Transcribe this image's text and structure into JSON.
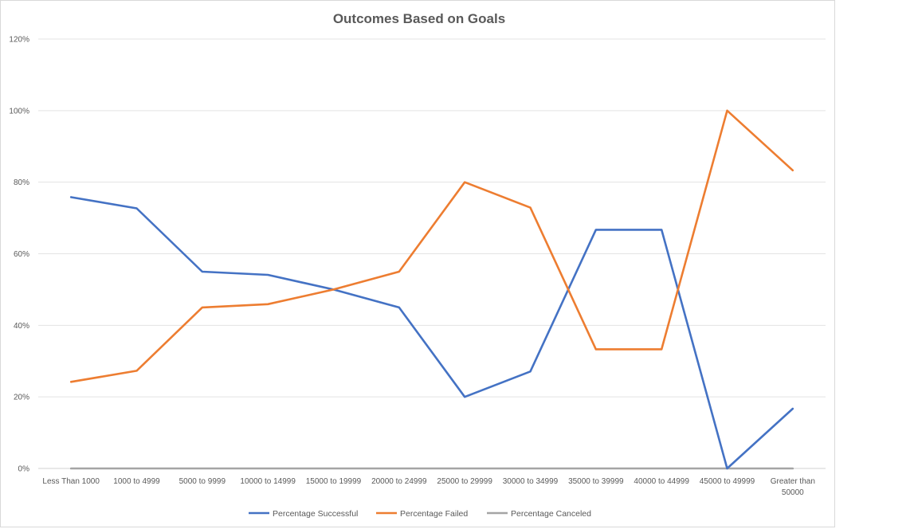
{
  "chart_data": {
    "type": "line",
    "title": "Outcomes Based on Goals",
    "xlabel": "",
    "ylabel": "",
    "categories": [
      "Less Than 1000",
      "1000 to 4999",
      "5000 to 9999",
      "10000 to 14999",
      "15000 to 19999",
      "20000 to 24999",
      "25000 to 29999",
      "30000 to 34999",
      "35000 to 39999",
      "40000 to 44999",
      "45000 to 49999",
      "Greater than 50000"
    ],
    "category_lines": [
      [
        "Less Than 1000"
      ],
      [
        "1000 to 4999"
      ],
      [
        "5000 to 9999"
      ],
      [
        "10000 to 14999"
      ],
      [
        "15000 to 19999"
      ],
      [
        "20000 to 24999"
      ],
      [
        "25000 to 29999"
      ],
      [
        "30000 to 34999"
      ],
      [
        "35000 to 39999"
      ],
      [
        "40000 to 44999"
      ],
      [
        "45000 to 49999"
      ],
      [
        "Greater than",
        "50000"
      ]
    ],
    "ylim": [
      0,
      120
    ],
    "y_ticks": [
      0,
      20,
      40,
      60,
      80,
      100,
      120
    ],
    "y_tick_labels": [
      "0%",
      "20%",
      "40%",
      "60%",
      "80%",
      "100%",
      "120%"
    ],
    "grid": true,
    "legend_position": "bottom",
    "series": [
      {
        "name": "Percentage Successful",
        "color": "#4472c4",
        "values": [
          75.8,
          72.7,
          55.0,
          54.1,
          50.0,
          45.0,
          20.0,
          27.1,
          66.7,
          66.7,
          0.0,
          16.7
        ]
      },
      {
        "name": "Percentage Failed",
        "color": "#ed7d31",
        "values": [
          24.2,
          27.3,
          45.0,
          45.9,
          50.0,
          55.0,
          80.0,
          72.9,
          33.3,
          33.3,
          100.0,
          83.3
        ]
      },
      {
        "name": "Percentage Canceled",
        "color": "#a5a5a5",
        "values": [
          0,
          0,
          0,
          0,
          0,
          0,
          0,
          0,
          0,
          0,
          0,
          0
        ]
      }
    ]
  }
}
